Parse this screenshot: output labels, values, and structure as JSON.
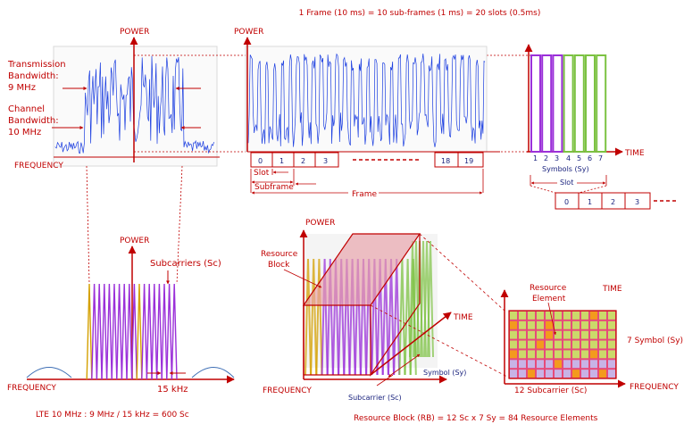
{
  "header": {
    "frame_caption": "1 Frame (10 ms) = 10 sub-frames (1 ms) = 20 slots (0.5ms)"
  },
  "spectrum_panel": {
    "power_label": "POWER",
    "frequency_label": "FREQUENCY",
    "tx_bw_label_1": "Transmission",
    "tx_bw_label_2": "Bandwidth:",
    "tx_bw_value": "9 MHz",
    "ch_bw_label_1": "Channel",
    "ch_bw_label_2": "Bandwidth:",
    "ch_bw_value": "10 MHz"
  },
  "time_panel": {
    "power_label": "POWER",
    "time_label": "TIME",
    "slots": [
      "0",
      "1",
      "2",
      "3",
      "18",
      "19"
    ],
    "slot_label": "Slot",
    "subframe_label": "Subframe",
    "frame_label": "Frame"
  },
  "symbols_panel": {
    "time_label": "TIME",
    "symbol_numbers": [
      "1",
      "2",
      "3",
      "4",
      "5",
      "6",
      "7"
    ],
    "symbols_label": "Symbols (Sy)",
    "slot_label": "Slot",
    "slots": [
      "0",
      "1",
      "2",
      "3"
    ]
  },
  "subcarrier_panel": {
    "power_label": "POWER",
    "subcarriers_label": "Subcarriers (Sc)",
    "frequency_label": "FREQUENCY",
    "spacing_label": "15 kHz",
    "caption": "LTE 10 MHz :  9 MHz / 15 kHz = 600 Sc"
  },
  "resource_block_panel": {
    "power_label": "POWER",
    "time_label": "TIME",
    "frequency_label": "FREQUENCY",
    "rb_label_1": "Resource",
    "rb_label_2": "Block",
    "symbol_label": "Symbol (Sy)",
    "subcarrier_label": "Subcarrier (Sc)",
    "caption": "Resource Block (RB) = 12 Sc x 7 Sy = 84 Resource Elements"
  },
  "resource_grid_panel": {
    "time_label": "TIME",
    "frequency_label": "FREQUENCY",
    "re_label_1": "Resource",
    "re_label_2": "Element",
    "symbols_label": "7 Symbol (Sy)",
    "subcarriers_label": "12 Subcarrier (Sc)"
  },
  "colors": {
    "accent": "#c00000",
    "signal": "#1a3de0",
    "symbol_purple": "#9b30d9",
    "symbol_green": "#7cc242",
    "subcarrier_gold": "#d4a000",
    "grid_orange": "#f39a1e"
  }
}
